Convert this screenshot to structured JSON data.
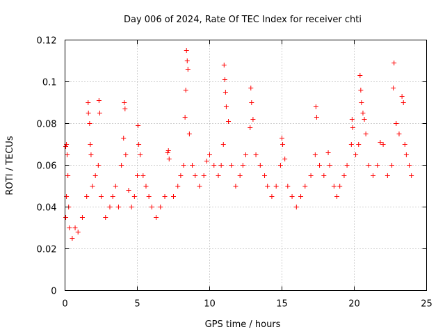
{
  "chart_data": {
    "type": "scatter",
    "title": "Day 006 of 2024, Rate Of TEC Index for receiver chti",
    "xlabel": "GPS time / hours",
    "ylabel": "ROTI / TECUs",
    "xlim": [
      0,
      25
    ],
    "ylim": [
      0,
      0.12
    ],
    "x_ticks": [
      0,
      5,
      10,
      15,
      20,
      25
    ],
    "x_tick_labels": [
      "0",
      "5",
      "10",
      "15",
      "20",
      "25"
    ],
    "y_ticks": [
      0,
      0.02,
      0.04,
      0.06,
      0.08,
      0.1,
      0.12
    ],
    "y_tick_labels": [
      "0",
      "0.02",
      "0.04",
      "0.06",
      "0.08",
      "0.1",
      "0.12"
    ],
    "grid": true,
    "marker": "+",
    "color": "#ff0000",
    "series": [
      {
        "name": "ROTI",
        "points": [
          [
            0.05,
            0.069
          ],
          [
            0.1,
            0.07
          ],
          [
            0.15,
            0.065
          ],
          [
            0.2,
            0.055
          ],
          [
            0.1,
            0.045
          ],
          [
            0.25,
            0.04
          ],
          [
            0.05,
            0.035
          ],
          [
            0.3,
            0.03
          ],
          [
            0.5,
            0.025
          ],
          [
            0.7,
            0.03
          ],
          [
            0.9,
            0.028
          ],
          [
            1.2,
            0.035
          ],
          [
            1.5,
            0.045
          ],
          [
            1.6,
            0.09
          ],
          [
            1.62,
            0.085
          ],
          [
            1.7,
            0.08
          ],
          [
            1.75,
            0.07
          ],
          [
            1.8,
            0.065
          ],
          [
            1.9,
            0.05
          ],
          [
            2.1,
            0.055
          ],
          [
            2.3,
            0.06
          ],
          [
            2.35,
            0.091
          ],
          [
            2.4,
            0.085
          ],
          [
            2.5,
            0.045
          ],
          [
            2.8,
            0.035
          ],
          [
            3.1,
            0.04
          ],
          [
            3.3,
            0.045
          ],
          [
            3.5,
            0.05
          ],
          [
            3.7,
            0.04
          ],
          [
            3.9,
            0.06
          ],
          [
            4.05,
            0.073
          ],
          [
            4.1,
            0.09
          ],
          [
            4.15,
            0.087
          ],
          [
            4.2,
            0.065
          ],
          [
            4.4,
            0.048
          ],
          [
            4.6,
            0.04
          ],
          [
            4.8,
            0.045
          ],
          [
            5.0,
            0.055
          ],
          [
            5.05,
            0.079
          ],
          [
            5.1,
            0.07
          ],
          [
            5.2,
            0.065
          ],
          [
            5.4,
            0.055
          ],
          [
            5.6,
            0.05
          ],
          [
            5.8,
            0.045
          ],
          [
            6.0,
            0.04
          ],
          [
            6.3,
            0.035
          ],
          [
            6.6,
            0.04
          ],
          [
            6.9,
            0.045
          ],
          [
            7.1,
            0.066
          ],
          [
            7.15,
            0.067
          ],
          [
            7.2,
            0.063
          ],
          [
            7.5,
            0.045
          ],
          [
            7.8,
            0.05
          ],
          [
            8.0,
            0.055
          ],
          [
            8.2,
            0.06
          ],
          [
            8.3,
            0.083
          ],
          [
            8.35,
            0.096
          ],
          [
            8.4,
            0.115
          ],
          [
            8.45,
            0.11
          ],
          [
            8.5,
            0.106
          ],
          [
            8.6,
            0.075
          ],
          [
            8.8,
            0.06
          ],
          [
            9.0,
            0.055
          ],
          [
            9.3,
            0.05
          ],
          [
            9.6,
            0.055
          ],
          [
            9.8,
            0.062
          ],
          [
            10.0,
            0.065
          ],
          [
            10.3,
            0.06
          ],
          [
            10.6,
            0.055
          ],
          [
            10.8,
            0.06
          ],
          [
            10.95,
            0.07
          ],
          [
            11.0,
            0.108
          ],
          [
            11.05,
            0.101
          ],
          [
            11.1,
            0.095
          ],
          [
            11.15,
            0.088
          ],
          [
            11.3,
            0.081
          ],
          [
            11.5,
            0.06
          ],
          [
            11.8,
            0.05
          ],
          [
            12.1,
            0.055
          ],
          [
            12.3,
            0.06
          ],
          [
            12.5,
            0.065
          ],
          [
            12.8,
            0.078
          ],
          [
            12.85,
            0.097
          ],
          [
            12.9,
            0.09
          ],
          [
            13.0,
            0.082
          ],
          [
            13.2,
            0.065
          ],
          [
            13.5,
            0.06
          ],
          [
            13.8,
            0.055
          ],
          [
            14.0,
            0.05
          ],
          [
            14.3,
            0.045
          ],
          [
            14.6,
            0.05
          ],
          [
            14.9,
            0.06
          ],
          [
            15.0,
            0.073
          ],
          [
            15.05,
            0.07
          ],
          [
            15.2,
            0.063
          ],
          [
            15.4,
            0.05
          ],
          [
            15.7,
            0.045
          ],
          [
            16.0,
            0.04
          ],
          [
            16.3,
            0.045
          ],
          [
            16.6,
            0.05
          ],
          [
            17.0,
            0.055
          ],
          [
            17.3,
            0.065
          ],
          [
            17.35,
            0.088
          ],
          [
            17.4,
            0.083
          ],
          [
            17.6,
            0.06
          ],
          [
            17.9,
            0.055
          ],
          [
            18.2,
            0.066
          ],
          [
            18.3,
            0.06
          ],
          [
            18.6,
            0.05
          ],
          [
            18.8,
            0.045
          ],
          [
            19.0,
            0.05
          ],
          [
            19.3,
            0.055
          ],
          [
            19.5,
            0.06
          ],
          [
            19.8,
            0.07
          ],
          [
            19.85,
            0.082
          ],
          [
            19.9,
            0.078
          ],
          [
            20.1,
            0.065
          ],
          [
            20.3,
            0.07
          ],
          [
            20.4,
            0.103
          ],
          [
            20.45,
            0.096
          ],
          [
            20.5,
            0.09
          ],
          [
            20.6,
            0.085
          ],
          [
            20.7,
            0.082
          ],
          [
            20.8,
            0.075
          ],
          [
            21.0,
            0.06
          ],
          [
            21.3,
            0.055
          ],
          [
            21.6,
            0.06
          ],
          [
            21.8,
            0.071
          ],
          [
            22.0,
            0.07
          ],
          [
            22.3,
            0.055
          ],
          [
            22.6,
            0.06
          ],
          [
            22.7,
            0.097
          ],
          [
            22.75,
            0.109
          ],
          [
            22.9,
            0.08
          ],
          [
            23.1,
            0.075
          ],
          [
            23.3,
            0.093
          ],
          [
            23.4,
            0.09
          ],
          [
            23.5,
            0.07
          ],
          [
            23.6,
            0.065
          ],
          [
            23.8,
            0.06
          ],
          [
            23.95,
            0.055
          ]
        ]
      }
    ]
  }
}
